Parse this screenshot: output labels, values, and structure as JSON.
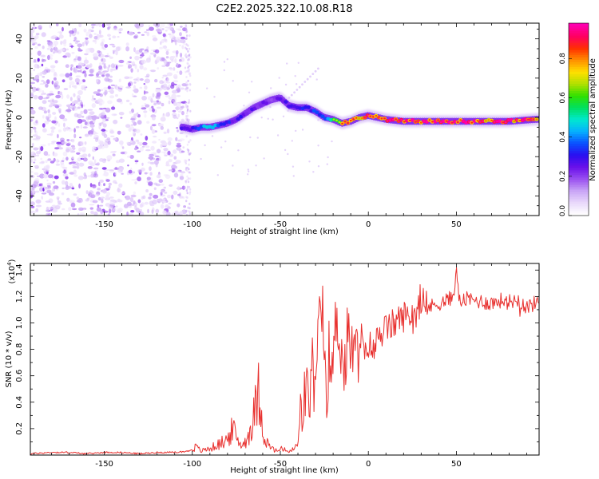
{
  "title": "C2E2.2025.322.10.08.R18",
  "colors": {
    "snr_line": "#e8302e",
    "axis": "#000000",
    "colorbar": [
      "#ffffff",
      "#e9d9fb",
      "#c9a5f6",
      "#9a50f0",
      "#6a10ea",
      "#2a0ff0",
      "#0a50ff",
      "#05b0ff",
      "#00e8d0",
      "#00e060",
      "#30e000",
      "#b0e000",
      "#ffe000",
      "#ff9000",
      "#ff3000",
      "#ff0060",
      "#ff00b0"
    ]
  },
  "chart_data": [
    {
      "type": "heatmap",
      "title": "C2E2.2025.322.10.08.R18",
      "xlabel": "Height of straight line (km)",
      "ylabel": "Frequency (Hz)",
      "xlim": [
        -192,
        97
      ],
      "ylim": [
        -50,
        48
      ],
      "xticks": [
        -150,
        -100,
        -50,
        0,
        50
      ],
      "yticks": [
        -40,
        -20,
        0,
        20,
        40
      ],
      "colorbar": {
        "label": "Normalized spectral amplitude",
        "range": [
          0,
          0.98
        ],
        "ticks": [
          "0.0",
          "0.2",
          "0.4",
          "0.6",
          "0.8"
        ],
        "tick_values": [
          0.0,
          0.2,
          0.4,
          0.6,
          0.8
        ]
      },
      "ridge": {
        "x": [
          -105,
          -100,
          -95,
          -90,
          -85,
          -80,
          -75,
          -70,
          -65,
          -60,
          -55,
          -50,
          -45,
          -40,
          -35,
          -30,
          -25,
          -20,
          -15,
          -10,
          -5,
          0,
          5,
          10,
          20,
          40,
          60,
          80,
          95
        ],
        "y": [
          -5,
          -6,
          -5,
          -5,
          -4,
          -3,
          -1,
          2,
          5,
          7,
          9,
          10,
          6,
          5,
          5,
          3,
          0,
          -1,
          -3,
          -2,
          0,
          1,
          0,
          -1,
          -2,
          -2,
          -2,
          -2,
          -1
        ],
        "amplitude": [
          0.3,
          0.35,
          0.45,
          0.5,
          0.4,
          0.35,
          0.3,
          0.3,
          0.28,
          0.25,
          0.25,
          0.3,
          0.28,
          0.3,
          0.35,
          0.4,
          0.45,
          0.55,
          0.75,
          0.85,
          0.8,
          0.9,
          0.9,
          0.95,
          0.95,
          0.95,
          0.95,
          0.95,
          0.9
        ]
      }
    },
    {
      "type": "line",
      "xlabel": "Height of straight line (km)",
      "ylabel": "SNR (10 * v/v)",
      "y_multiplier": "(x10^4)",
      "y_multiplier_base": "(x10",
      "y_multiplier_exp": "4",
      "y_multiplier_close": ")",
      "xlim": [
        -192,
        97
      ],
      "ylim": [
        0,
        1.45
      ],
      "xticks": [
        -150,
        -100,
        -50,
        0,
        50
      ],
      "yticks": [
        0.2,
        0.4,
        0.6,
        0.8,
        1.0,
        1.2,
        1.4
      ],
      "ytick_labels": [
        "0.2",
        "0.4",
        "0.6",
        "0.8",
        "1.0",
        "1.2",
        "1.4"
      ],
      "series": [
        {
          "name": "SNR",
          "x": [
            -192,
            -180,
            -170,
            -160,
            -150,
            -140,
            -130,
            -120,
            -110,
            -102,
            -98,
            -95,
            -90,
            -85,
            -80,
            -77,
            -74,
            -71,
            -68,
            -65,
            -62,
            -60,
            -58,
            -55,
            -52,
            -50,
            -48,
            -45,
            -42,
            -40,
            -38,
            -36,
            -34,
            -32,
            -30,
            -28,
            -26,
            -24,
            -22,
            -20,
            -18,
            -16,
            -14,
            -12,
            -10,
            -8,
            -6,
            -4,
            -2,
            0,
            3,
            6,
            10,
            15,
            20,
            25,
            30,
            35,
            40,
            45,
            48,
            50,
            52,
            55,
            60,
            65,
            70,
            75,
            80,
            85,
            90,
            95,
            97
          ],
          "y": [
            0.01,
            0.02,
            0.02,
            0.01,
            0.02,
            0.02,
            0.01,
            0.02,
            0.02,
            0.03,
            0.06,
            0.03,
            0.05,
            0.08,
            0.12,
            0.2,
            0.1,
            0.08,
            0.15,
            0.3,
            0.5,
            0.2,
            0.1,
            0.05,
            0.03,
            0.04,
            0.05,
            0.02,
            0.05,
            0.08,
            0.3,
            0.5,
            0.35,
            0.7,
            0.45,
            0.9,
            1.15,
            0.5,
            0.8,
            0.65,
            1.1,
            0.9,
            0.6,
            0.85,
            0.85,
            0.7,
            0.8,
            0.9,
            0.72,
            0.85,
            0.78,
            0.92,
            0.95,
            1.0,
            1.05,
            1.07,
            1.1,
            1.12,
            1.15,
            1.17,
            1.2,
            1.38,
            1.15,
            1.18,
            1.17,
            1.16,
            1.15,
            1.17,
            1.16,
            1.18,
            1.12,
            1.15,
            1.17
          ]
        }
      ]
    }
  ]
}
